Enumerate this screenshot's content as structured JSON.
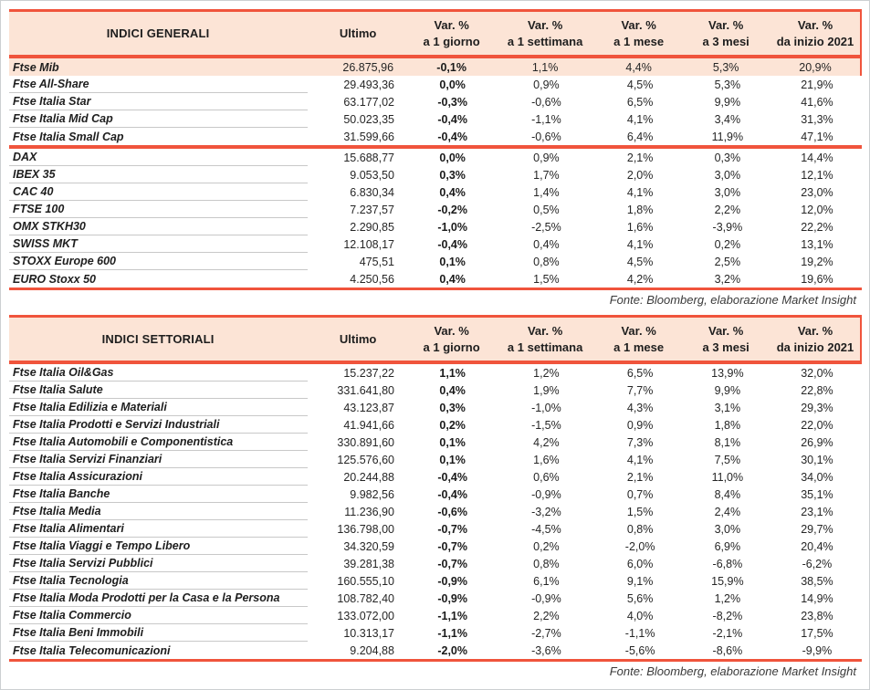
{
  "source_note": "Fonte: Bloomberg, elaborazione Market Insight",
  "columns": {
    "ultimo": "Ultimo",
    "var_headers": [
      {
        "l1": "Var. %",
        "l2": "a 1 giorno"
      },
      {
        "l1": "Var. %",
        "l2": "a 1 settimana"
      },
      {
        "l1": "Var. %",
        "l2": "a 1 mese"
      },
      {
        "l1": "Var. %",
        "l2": "a 3 mesi"
      },
      {
        "l1": "Var. %",
        "l2": "da inizio 2021"
      }
    ]
  },
  "tables": [
    {
      "title": "INDICI GENERALI",
      "groups": [
        {
          "rows": [
            {
              "name": "Ftse Mib",
              "highlight": true,
              "ultimo": "26.875,96",
              "vars": [
                "-0,1%",
                "1,1%",
                "4,4%",
                "5,3%",
                "20,9%"
              ]
            },
            {
              "name": "Ftse All-Share",
              "ultimo": "29.493,36",
              "vars": [
                "0,0%",
                "0,9%",
                "4,5%",
                "5,3%",
                "21,9%"
              ]
            },
            {
              "name": "Ftse Italia Star",
              "ultimo": "63.177,02",
              "vars": [
                "-0,3%",
                "-0,6%",
                "6,5%",
                "9,9%",
                "41,6%"
              ]
            },
            {
              "name": "Ftse Italia Mid Cap",
              "ultimo": "50.023,35",
              "vars": [
                "-0,4%",
                "-1,1%",
                "4,1%",
                "3,4%",
                "31,3%"
              ]
            },
            {
              "name": "Ftse Italia Small Cap",
              "ultimo": "31.599,66",
              "vars": [
                "-0,4%",
                "-0,6%",
                "6,4%",
                "11,9%",
                "47,1%"
              ]
            }
          ]
        },
        {
          "rows": [
            {
              "name": "DAX",
              "ultimo": "15.688,77",
              "vars": [
                "0,0%",
                "0,9%",
                "2,1%",
                "0,3%",
                "14,4%"
              ]
            },
            {
              "name": "IBEX 35",
              "ultimo": "9.053,50",
              "vars": [
                "0,3%",
                "1,7%",
                "2,0%",
                "3,0%",
                "12,1%"
              ]
            },
            {
              "name": "CAC 40",
              "ultimo": "6.830,34",
              "vars": [
                "0,4%",
                "1,4%",
                "4,1%",
                "3,0%",
                "23,0%"
              ]
            },
            {
              "name": "FTSE 100",
              "ultimo": "7.237,57",
              "vars": [
                "-0,2%",
                "0,5%",
                "1,8%",
                "2,2%",
                "12,0%"
              ]
            },
            {
              "name": "OMX STKH30",
              "ultimo": "2.290,85",
              "vars": [
                "-1,0%",
                "-2,5%",
                "1,6%",
                "-3,9%",
                "22,2%"
              ]
            },
            {
              "name": "SWISS MKT",
              "ultimo": "12.108,17",
              "vars": [
                "-0,4%",
                "0,4%",
                "4,1%",
                "0,2%",
                "13,1%"
              ]
            },
            {
              "name": "STOXX Europe 600",
              "ultimo": "475,51",
              "vars": [
                "0,1%",
                "0,8%",
                "4,5%",
                "2,5%",
                "19,2%"
              ]
            },
            {
              "name": "EURO Stoxx 50",
              "ultimo": "4.250,56",
              "vars": [
                "0,4%",
                "1,5%",
                "4,2%",
                "3,2%",
                "19,6%"
              ]
            }
          ]
        }
      ]
    },
    {
      "title": "INDICI SETTORIALI",
      "groups": [
        {
          "rows": [
            {
              "name": "Ftse Italia Oil&Gas",
              "ultimo": "15.237,22",
              "vars": [
                "1,1%",
                "1,2%",
                "6,5%",
                "13,9%",
                "32,0%"
              ]
            },
            {
              "name": "Ftse Italia Salute",
              "ultimo": "331.641,80",
              "vars": [
                "0,4%",
                "1,9%",
                "7,7%",
                "9,9%",
                "22,8%"
              ]
            },
            {
              "name": "Ftse Italia Edilizia e Materiali",
              "ultimo": "43.123,87",
              "vars": [
                "0,3%",
                "-1,0%",
                "4,3%",
                "3,1%",
                "29,3%"
              ]
            },
            {
              "name": "Ftse Italia Prodotti e Servizi Industriali",
              "ultimo": "41.941,66",
              "vars": [
                "0,2%",
                "-1,5%",
                "0,9%",
                "1,8%",
                "22,0%"
              ]
            },
            {
              "name": "Ftse Italia Automobili e Componentistica",
              "ultimo": "330.891,60",
              "vars": [
                "0,1%",
                "4,2%",
                "7,3%",
                "8,1%",
                "26,9%"
              ]
            },
            {
              "name": "Ftse Italia Servizi Finanziari",
              "ultimo": "125.576,60",
              "vars": [
                "0,1%",
                "1,6%",
                "4,1%",
                "7,5%",
                "30,1%"
              ]
            },
            {
              "name": "Ftse Italia Assicurazioni",
              "ultimo": "20.244,88",
              "vars": [
                "-0,4%",
                "0,6%",
                "2,1%",
                "11,0%",
                "34,0%"
              ]
            },
            {
              "name": "Ftse Italia Banche",
              "ultimo": "9.982,56",
              "vars": [
                "-0,4%",
                "-0,9%",
                "0,7%",
                "8,4%",
                "35,1%"
              ]
            },
            {
              "name": "Ftse Italia Media",
              "ultimo": "11.236,90",
              "vars": [
                "-0,6%",
                "-3,2%",
                "1,5%",
                "2,4%",
                "23,1%"
              ]
            },
            {
              "name": "Ftse Italia Alimentari",
              "ultimo": "136.798,00",
              "vars": [
                "-0,7%",
                "-4,5%",
                "0,8%",
                "3,0%",
                "29,7%"
              ]
            },
            {
              "name": "Ftse Italia Viaggi e Tempo Libero",
              "ultimo": "34.320,59",
              "vars": [
                "-0,7%",
                "0,2%",
                "-2,0%",
                "6,9%",
                "20,4%"
              ]
            },
            {
              "name": "Ftse Italia Servizi Pubblici",
              "ultimo": "39.281,38",
              "vars": [
                "-0,7%",
                "0,8%",
                "6,0%",
                "-6,8%",
                "-6,2%"
              ]
            },
            {
              "name": "Ftse Italia Tecnologia",
              "ultimo": "160.555,10",
              "vars": [
                "-0,9%",
                "6,1%",
                "9,1%",
                "15,9%",
                "38,5%"
              ]
            },
            {
              "name": "Ftse Italia Moda Prodotti per la Casa e la Persona",
              "ultimo": "108.782,40",
              "vars": [
                "-0,9%",
                "-0,9%",
                "5,6%",
                "1,2%",
                "14,9%"
              ]
            },
            {
              "name": "Ftse Italia Commercio",
              "ultimo": "133.072,00",
              "vars": [
                "-1,1%",
                "2,2%",
                "4,0%",
                "-8,2%",
                "23,8%"
              ]
            },
            {
              "name": "Ftse Italia Beni Immobili",
              "ultimo": "10.313,17",
              "vars": [
                "-1,1%",
                "-2,7%",
                "-1,1%",
                "-2,1%",
                "17,5%"
              ]
            },
            {
              "name": "Ftse Italia Telecomunicazioni",
              "ultimo": "9.204,88",
              "vars": [
                "-2,0%",
                "-3,6%",
                "-5,6%",
                "-8,6%",
                "-9,9%"
              ]
            }
          ]
        }
      ]
    }
  ]
}
